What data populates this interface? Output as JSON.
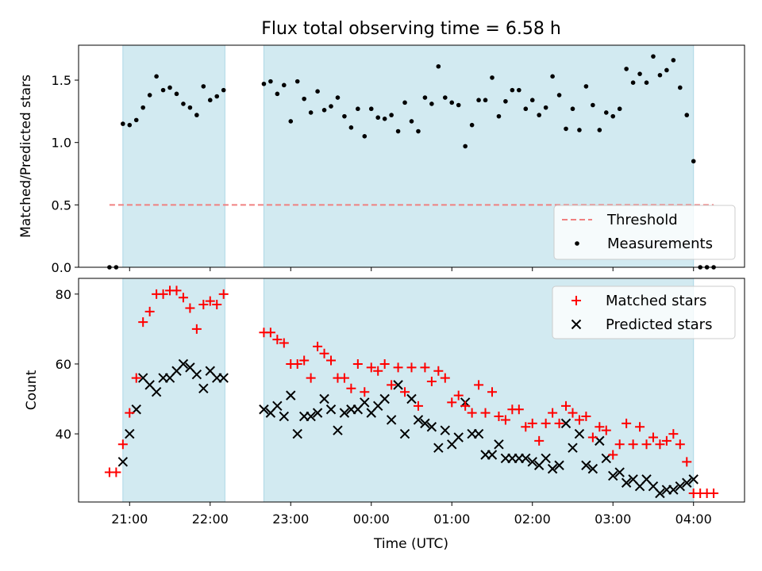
{
  "title": "Flux total observing time = 6.58 h",
  "xlabel": "Time (UTC)",
  "x_ticks": [
    "21:00",
    "22:00",
    "23:00",
    "00:00",
    "01:00",
    "02:00",
    "03:00",
    "04:00"
  ],
  "colors": {
    "shade": "#add8e6",
    "threshold": "#f08080",
    "matched": "#ff0000",
    "predicted": "#000000",
    "measurement": "#000000"
  },
  "chart_data": [
    {
      "type": "scatter",
      "ylabel": "Matched/Predicted stars",
      "ylim": [
        0,
        1.78
      ],
      "y_ticks": [
        "0.0",
        "0.5",
        "1.0",
        "1.5"
      ],
      "xlim": [
        "20:22",
        "04:38"
      ],
      "observing_windows": [
        [
          "20:55",
          "22:11"
        ],
        [
          "22:40",
          "04:00"
        ]
      ],
      "threshold": {
        "name": "Threshold",
        "value": 0.5,
        "x_range": [
          "20:45",
          "04:15"
        ]
      },
      "legend": {
        "placement": "bottom-right",
        "entries": [
          "Threshold",
          "Measurements"
        ]
      },
      "series": [
        {
          "name": "Measurements",
          "x": [
            "20:45",
            "20:50",
            "20:55",
            "21:00",
            "21:05",
            "21:10",
            "21:15",
            "21:20",
            "21:25",
            "21:30",
            "21:35",
            "21:40",
            "21:45",
            "21:50",
            "21:55",
            "22:00",
            "22:05",
            "22:10",
            "22:40",
            "22:45",
            "22:50",
            "22:55",
            "23:00",
            "23:05",
            "23:10",
            "23:15",
            "23:20",
            "23:25",
            "23:30",
            "23:35",
            "23:40",
            "23:45",
            "23:50",
            "23:55",
            "00:00",
            "00:05",
            "00:10",
            "00:15",
            "00:20",
            "00:25",
            "00:30",
            "00:35",
            "00:40",
            "00:45",
            "00:50",
            "00:55",
            "01:00",
            "01:05",
            "01:10",
            "01:15",
            "01:20",
            "01:25",
            "01:30",
            "01:35",
            "01:40",
            "01:45",
            "01:50",
            "01:55",
            "02:00",
            "02:05",
            "02:10",
            "02:15",
            "02:20",
            "02:25",
            "02:30",
            "02:35",
            "02:40",
            "02:45",
            "02:50",
            "02:55",
            "03:00",
            "03:05",
            "03:10",
            "03:15",
            "03:20",
            "03:25",
            "03:30",
            "03:35",
            "03:40",
            "03:45",
            "03:50",
            "03:55",
            "04:00",
            "04:05",
            "04:10",
            "04:15"
          ],
          "y": [
            0.0,
            0.0,
            1.15,
            1.14,
            1.18,
            1.28,
            1.38,
            1.53,
            1.42,
            1.44,
            1.39,
            1.31,
            1.28,
            1.22,
            1.45,
            1.34,
            1.37,
            1.42,
            1.47,
            1.49,
            1.39,
            1.46,
            1.17,
            1.49,
            1.35,
            1.24,
            1.41,
            1.26,
            1.29,
            1.36,
            1.21,
            1.12,
            1.27,
            1.05,
            1.27,
            1.2,
            1.19,
            1.22,
            1.09,
            1.32,
            1.17,
            1.09,
            1.36,
            1.31,
            1.61,
            1.36,
            1.32,
            1.3,
            0.97,
            1.14,
            1.34,
            1.34,
            1.52,
            1.21,
            1.33,
            1.42,
            1.42,
            1.27,
            1.34,
            1.22,
            1.28,
            1.53,
            1.38,
            1.11,
            1.27,
            1.1,
            1.45,
            1.3,
            1.1,
            1.24,
            1.21,
            1.27,
            1.59,
            1.48,
            1.55,
            1.48,
            1.69,
            1.54,
            1.58,
            1.66,
            1.44,
            1.22,
            0.85,
            0.0,
            0.0,
            0.0
          ]
        }
      ]
    },
    {
      "type": "scatter",
      "ylabel": "Count",
      "ylim": [
        20.5,
        84.5
      ],
      "y_ticks": [
        "40",
        "60",
        "80"
      ],
      "xlim": [
        "20:22",
        "04:38"
      ],
      "observing_windows": [
        [
          "20:55",
          "22:11"
        ],
        [
          "22:40",
          "04:00"
        ]
      ],
      "legend": {
        "placement": "top-right",
        "entries": [
          "Matched stars",
          "Predicted stars"
        ]
      },
      "series": [
        {
          "name": "Matched stars",
          "x": [
            "20:45",
            "20:50",
            "20:55",
            "21:00",
            "21:05",
            "21:10",
            "21:15",
            "21:20",
            "21:25",
            "21:30",
            "21:35",
            "21:40",
            "21:45",
            "21:50",
            "21:55",
            "22:00",
            "22:05",
            "22:10",
            "22:40",
            "22:45",
            "22:50",
            "22:55",
            "23:00",
            "23:05",
            "23:10",
            "23:15",
            "23:20",
            "23:25",
            "23:30",
            "23:35",
            "23:40",
            "23:45",
            "23:50",
            "23:55",
            "00:00",
            "00:05",
            "00:10",
            "00:15",
            "00:20",
            "00:25",
            "00:30",
            "00:35",
            "00:40",
            "00:45",
            "00:50",
            "00:55",
            "01:00",
            "01:05",
            "01:10",
            "01:15",
            "01:20",
            "01:25",
            "01:30",
            "01:35",
            "01:40",
            "01:45",
            "01:50",
            "01:55",
            "02:00",
            "02:05",
            "02:10",
            "02:15",
            "02:20",
            "02:25",
            "02:30",
            "02:35",
            "02:40",
            "02:45",
            "02:50",
            "02:55",
            "03:00",
            "03:05",
            "03:10",
            "03:15",
            "03:20",
            "03:25",
            "03:30",
            "03:35",
            "03:40",
            "03:45",
            "03:50",
            "03:55",
            "04:00",
            "04:05",
            "04:10",
            "04:15"
          ],
          "y": [
            29,
            29,
            37,
            46,
            56,
            72,
            75,
            80,
            80,
            81,
            81,
            79,
            76,
            70,
            77,
            78,
            77,
            80,
            69,
            69,
            67,
            66,
            60,
            60,
            61,
            56,
            65,
            63,
            61,
            56,
            56,
            53,
            60,
            52,
            59,
            58,
            60,
            54,
            59,
            52,
            59,
            48,
            59,
            55,
            58,
            56,
            49,
            51,
            48,
            46,
            54,
            46,
            52,
            45,
            44,
            47,
            47,
            42,
            43,
            38,
            43,
            46,
            43,
            48,
            46,
            44,
            45,
            39,
            42,
            41,
            34,
            37,
            43,
            37,
            42,
            37,
            39,
            37,
            38,
            40,
            37,
            32,
            23,
            23,
            23,
            23
          ]
        },
        {
          "name": "Predicted stars",
          "x": [
            "20:45",
            "20:50",
            "20:55",
            "21:00",
            "21:05",
            "21:10",
            "21:15",
            "21:20",
            "21:25",
            "21:30",
            "21:35",
            "21:40",
            "21:45",
            "21:50",
            "21:55",
            "22:00",
            "22:05",
            "22:10",
            "22:40",
            "22:45",
            "22:50",
            "22:55",
            "23:00",
            "23:05",
            "23:10",
            "23:15",
            "23:20",
            "23:25",
            "23:30",
            "23:35",
            "23:40",
            "23:45",
            "23:50",
            "23:55",
            "00:00",
            "00:05",
            "00:10",
            "00:15",
            "00:20",
            "00:25",
            "00:30",
            "00:35",
            "00:40",
            "00:45",
            "00:50",
            "00:55",
            "01:00",
            "01:05",
            "01:10",
            "01:15",
            "01:20",
            "01:25",
            "01:30",
            "01:35",
            "01:40",
            "01:45",
            "01:50",
            "01:55",
            "02:00",
            "02:05",
            "02:10",
            "02:15",
            "02:20",
            "02:25",
            "02:30",
            "02:35",
            "02:40",
            "02:45",
            "02:50",
            "02:55",
            "03:00",
            "03:05",
            "03:10",
            "03:15",
            "03:20",
            "03:25",
            "03:30",
            "03:35",
            "03:40",
            "03:45",
            "03:50",
            "03:55",
            "04:00"
          ],
          "y": [
            null,
            null,
            32,
            40,
            47,
            56,
            54,
            52,
            56,
            56,
            58,
            60,
            59,
            57,
            53,
            58,
            56,
            56,
            47,
            46,
            48,
            45,
            51,
            40,
            45,
            45,
            46,
            50,
            47,
            41,
            46,
            47,
            47,
            49,
            46,
            48,
            50,
            44,
            54,
            40,
            50,
            44,
            43,
            42,
            36,
            41,
            37,
            39,
            49,
            40,
            40,
            34,
            34,
            37,
            33,
            33,
            33,
            33,
            32,
            31,
            33,
            30,
            31,
            43,
            36,
            40,
            31,
            30,
            38,
            33,
            28,
            29,
            26,
            27,
            25,
            27,
            25,
            23,
            24,
            24,
            25,
            26,
            27
          ]
        }
      ]
    }
  ]
}
